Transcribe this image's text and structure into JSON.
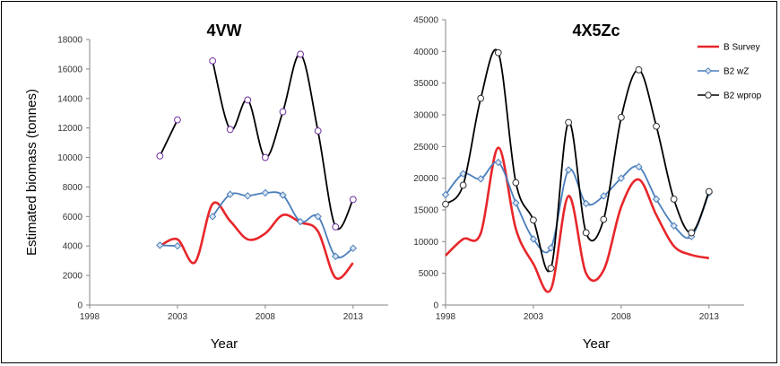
{
  "chart_data": [
    {
      "type": "line",
      "title": "4VW",
      "xlabel": "Year",
      "ylabel": "Estimated biomass (tonnes)",
      "xlim": [
        1998,
        2015
      ],
      "ylim": [
        0,
        18000
      ],
      "x_ticks": [
        1998,
        2003,
        2008,
        2013
      ],
      "y_ticks": [
        0,
        2000,
        4000,
        6000,
        8000,
        10000,
        12000,
        14000,
        16000,
        18000
      ],
      "series": [
        {
          "key": "b_survey",
          "color": "#e8262a",
          "marker": "none",
          "points": [
            [
              2002,
              4000
            ],
            [
              2003,
              4450
            ],
            [
              2004,
              2900
            ],
            [
              2005,
              6850
            ],
            [
              2006,
              5700
            ],
            [
              2007,
              4450
            ],
            [
              2008,
              4850
            ],
            [
              2009,
              6100
            ],
            [
              2010,
              5600
            ],
            [
              2011,
              5000
            ],
            [
              2012,
              1850
            ],
            [
              2013,
              2850
            ]
          ]
        },
        {
          "key": "b2_wz",
          "color": "#4a7ebb",
          "marker": "diamond",
          "segments": [
            [
              [
                2002,
                4050
              ],
              [
                2003,
                4000
              ]
            ],
            [
              [
                2005,
                6000
              ],
              [
                2006,
                7500
              ],
              [
                2007,
                7400
              ],
              [
                2008,
                7600
              ],
              [
                2009,
                7450
              ],
              [
                2010,
                5650
              ],
              [
                2011,
                6000
              ],
              [
                2012,
                3300
              ],
              [
                2013,
                3850
              ]
            ]
          ]
        },
        {
          "key": "b2_wprop",
          "color": "#000000",
          "marker": "circle",
          "marker_edge": "#7030a0",
          "segments": [
            [
              [
                2002,
                10100
              ],
              [
                2003,
                12550
              ]
            ],
            [
              [
                2005,
                16550
              ],
              [
                2006,
                11900
              ],
              [
                2007,
                13900
              ],
              [
                2008,
                10000
              ],
              [
                2009,
                13100
              ],
              [
                2010,
                17000
              ],
              [
                2011,
                11800
              ],
              [
                2012,
                5300
              ],
              [
                2013,
                7150
              ]
            ]
          ]
        }
      ]
    },
    {
      "type": "line",
      "title": "4X5Zc",
      "xlabel": "Year",
      "xlim": [
        1998,
        2015
      ],
      "ylim": [
        0,
        45000
      ],
      "x_ticks": [
        1998,
        2003,
        2008,
        2013
      ],
      "y_ticks": [
        0,
        5000,
        10000,
        15000,
        20000,
        25000,
        30000,
        35000,
        40000,
        45000
      ],
      "legend_position": "top-right",
      "series": [
        {
          "key": "b_survey",
          "name": "B Survey",
          "color": "#e8262a",
          "marker": "none",
          "points": [
            [
              1998,
              7800
            ],
            [
              1999,
              10400
            ],
            [
              2000,
              11300
            ],
            [
              2001,
              24800
            ],
            [
              2002,
              12000
            ],
            [
              2003,
              6500
            ],
            [
              2004,
              2500
            ],
            [
              2005,
              17200
            ],
            [
              2006,
              5000
            ],
            [
              2007,
              5500
            ],
            [
              2008,
              15500
            ],
            [
              2009,
              19800
            ],
            [
              2010,
              14200
            ],
            [
              2011,
              9300
            ],
            [
              2012,
              7900
            ],
            [
              2013,
              7400
            ]
          ]
        },
        {
          "key": "b2_wz",
          "name": "B2 wZ",
          "color": "#4a7ebb",
          "marker": "diamond",
          "points": [
            [
              1998,
              17400
            ],
            [
              1999,
              20700
            ],
            [
              2000,
              19900
            ],
            [
              2001,
              22500
            ],
            [
              2002,
              16100
            ],
            [
              2003,
              10400
            ],
            [
              2004,
              9000
            ],
            [
              2005,
              21300
            ],
            [
              2006,
              16000
            ],
            [
              2007,
              17200
            ],
            [
              2008,
              20000
            ],
            [
              2009,
              21800
            ],
            [
              2010,
              16700
            ],
            [
              2011,
              12500
            ],
            [
              2012,
              10800
            ],
            [
              2013,
              17700
            ]
          ]
        },
        {
          "key": "b2_wprop",
          "name": "B2 wprop",
          "color": "#000000",
          "marker": "circle",
          "marker_edge": "#333333",
          "points": [
            [
              1998,
              15900
            ],
            [
              1999,
              18900
            ],
            [
              2000,
              32600
            ],
            [
              2001,
              39800
            ],
            [
              2002,
              19300
            ],
            [
              2003,
              13400
            ],
            [
              2004,
              5800
            ],
            [
              2005,
              28800
            ],
            [
              2006,
              11400
            ],
            [
              2007,
              13500
            ],
            [
              2008,
              29600
            ],
            [
              2009,
              37100
            ],
            [
              2010,
              28200
            ],
            [
              2011,
              16700
            ],
            [
              2012,
              11400
            ],
            [
              2013,
              17900
            ]
          ]
        }
      ]
    }
  ]
}
